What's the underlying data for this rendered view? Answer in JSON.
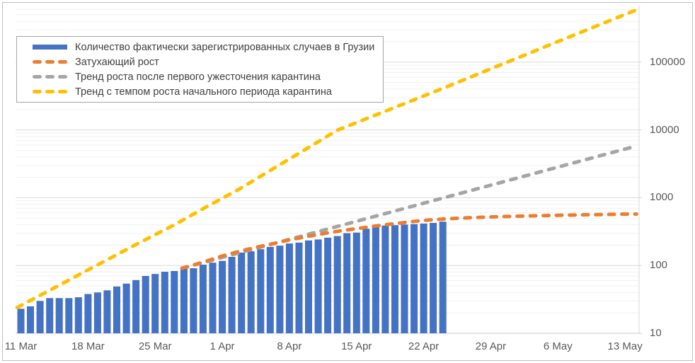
{
  "window": {
    "background": "#FFFFFF",
    "border_color": "#BFBFBF"
  },
  "legend": {
    "border_color": "#A6A6A6",
    "items": [
      {
        "label": "Количество фактически зарегистрированных случаев в Грузии",
        "color": "#4472C4",
        "swatch": "bar"
      },
      {
        "label": "Затухающий рост",
        "color": "#ED7D31",
        "swatch": "dash"
      },
      {
        "label": "Тренд роста после первого ужесточения карантина",
        "color": "#A5A5A5",
        "swatch": "dash"
      },
      {
        "label": "Тренд с темпом роста начального периода карантина",
        "color": "#FFC000",
        "swatch": "dash"
      }
    ]
  },
  "chart_data": {
    "type": "bar",
    "subtype": "combo: daily bars + three dashed trend lines on logarithmic y scale",
    "title": "",
    "x_axis": {
      "start_date": "11 Mar",
      "end_date": "13 May",
      "tick_labels": [
        "11 Mar",
        "18 Mar",
        "25 Mar",
        "1 Apr",
        "8 Apr",
        "15 Apr",
        "22 Apr",
        "29 Apr",
        "6 May",
        "13 May"
      ],
      "tick_day_offsets": [
        0,
        7,
        14,
        21,
        28,
        35,
        42,
        49,
        56,
        63
      ],
      "text_color": "#595959"
    },
    "y_axis": {
      "scale": "log",
      "tick_labels": [
        "10",
        "100",
        "1000",
        "10000",
        "100000"
      ],
      "tick_values": [
        10,
        100,
        1000,
        10000,
        100000
      ],
      "range": [
        10,
        700000
      ],
      "label_side": "right",
      "text_color": "#595959",
      "gridline_major_color": "#D8D8D8",
      "gridline_minor_color": "#F1F1F1",
      "axis_line_color": "#C8C8C8"
    },
    "bars": {
      "name": "Количество фактически зарегистрированных случаев в Грузии",
      "color": "#4472C4",
      "dates": [
        "11 Mar",
        "12 Mar",
        "13 Mar",
        "14 Mar",
        "15 Mar",
        "16 Mar",
        "17 Mar",
        "18 Mar",
        "19 Mar",
        "20 Mar",
        "21 Mar",
        "22 Mar",
        "23 Mar",
        "24 Mar",
        "25 Mar",
        "26 Mar",
        "27 Mar",
        "28 Mar",
        "29 Mar",
        "30 Mar",
        "31 Mar",
        "1 Apr",
        "2 Apr",
        "3 Apr",
        "4 Apr",
        "5 Apr",
        "6 Apr",
        "7 Apr",
        "8 Apr",
        "9 Apr",
        "10 Apr",
        "11 Apr",
        "12 Apr",
        "13 Apr",
        "14 Apr",
        "15 Apr",
        "16 Apr",
        "17 Apr",
        "18 Apr",
        "19 Apr",
        "20 Apr",
        "21 Apr",
        "22 Apr",
        "23 Apr",
        "24 Apr"
      ],
      "values": [
        23,
        25,
        30,
        33,
        33,
        33,
        34,
        38,
        40,
        43,
        49,
        54,
        61,
        70,
        75,
        81,
        83,
        90,
        91,
        103,
        110,
        117,
        134,
        155,
        162,
        174,
        188,
        196,
        211,
        218,
        234,
        242,
        257,
        272,
        300,
        306,
        348,
        370,
        388,
        394,
        402,
        408,
        416,
        425,
        444
      ]
    },
    "line_series": [
      {
        "name": "Затухающий рост",
        "color": "#ED7D31",
        "points_day_value": [
          [
            16.8,
            91
          ],
          [
            19,
            112
          ],
          [
            21,
            138
          ],
          [
            23,
            165
          ],
          [
            25,
            192
          ],
          [
            26.5,
            213
          ],
          [
            28,
            238
          ],
          [
            30,
            270
          ],
          [
            32,
            303
          ],
          [
            33.5,
            327
          ],
          [
            35,
            350
          ],
          [
            37,
            383
          ],
          [
            39,
            415
          ],
          [
            40.5,
            440
          ],
          [
            42,
            462
          ],
          [
            44,
            484
          ],
          [
            45.5,
            497
          ],
          [
            47,
            508
          ],
          [
            49,
            520
          ],
          [
            51,
            530
          ],
          [
            53,
            539
          ],
          [
            56,
            550
          ],
          [
            59,
            560
          ],
          [
            61,
            566
          ],
          [
            63,
            572
          ],
          [
            64.2,
            574
          ]
        ]
      },
      {
        "name": "Тренд роста после первого ужесточения карантина",
        "color": "#A5A5A5",
        "points_day_value": [
          [
            16.8,
            91
          ],
          [
            64.0,
            5700
          ]
        ]
      },
      {
        "name": "Тренд с темпом роста начального периода карантина",
        "color": "#FFC000",
        "points_day_value": [
          [
            -0.4,
            24
          ],
          [
            3.0,
            43
          ],
          [
            7.2,
            89
          ],
          [
            11.8,
            197
          ],
          [
            16.1,
            405
          ],
          [
            19.4,
            740
          ],
          [
            22.7,
            1320
          ],
          [
            33.0,
            9900
          ],
          [
            44.0,
            41000
          ],
          [
            55.4,
            186000
          ],
          [
            64.0,
            575000
          ]
        ]
      }
    ]
  }
}
